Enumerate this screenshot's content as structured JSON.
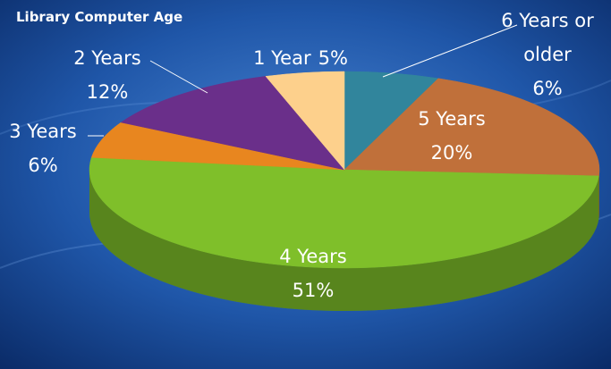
{
  "chart_data": {
    "type": "pie3d",
    "title": "Library Computer Age",
    "categories": [
      "6 Years or older",
      "5 Years",
      "4 Years",
      "3 Years",
      "2 Years",
      "1 Year"
    ],
    "values": [
      6,
      20,
      51,
      6,
      12,
      5
    ],
    "value_labels": [
      "6%",
      "20%",
      "51%",
      "6%",
      "12%",
      "5%"
    ],
    "colors": [
      "#31859c",
      "#c0703a",
      "#7fbf2a",
      "#e8861f",
      "#6a2f8a",
      "#fdd08c"
    ]
  }
}
